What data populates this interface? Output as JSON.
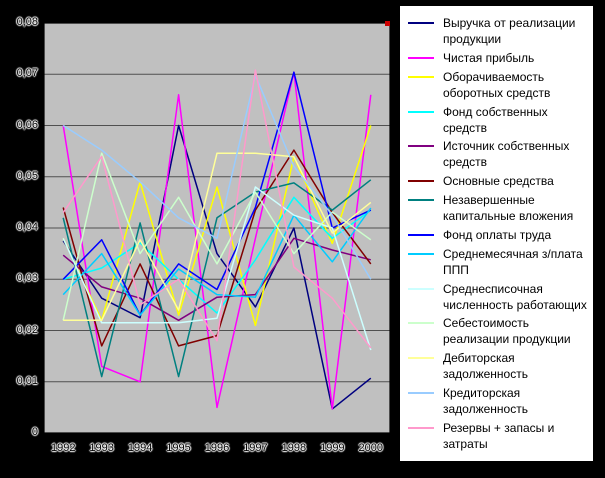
{
  "page": {
    "background": "#000000"
  },
  "chart_data": {
    "type": "line",
    "title": "",
    "xlabel": "",
    "ylabel": "",
    "categories": [
      "1992",
      "1993",
      "1994",
      "1995",
      "1996",
      "1997",
      "1998",
      "1999",
      "2000"
    ],
    "y_tick_labels": [
      "0",
      "0,01",
      "0,02",
      "0,03",
      "0,04",
      "0,05",
      "0,06",
      "0,07",
      "0,08"
    ],
    "ylim": [
      0,
      0.08
    ],
    "grid": "horizontal",
    "legend_position": "right",
    "plot_background": "#C0C0C0",
    "gridline_color": "#505050",
    "series": [
      {
        "name": "Выручка от реализации продукции",
        "color": "#000080",
        "values": [
          0.0375,
          0.0263,
          0.0225,
          0.06,
          0.035,
          0.0246,
          0.04,
          0.0047,
          0.0107
        ]
      },
      {
        "name": "Чистая прибыль",
        "color": "#FF00FF",
        "values": [
          0.06,
          0.013,
          0.01,
          0.066,
          0.005,
          0.038,
          0.0704,
          0.0047,
          0.066
        ]
      },
      {
        "name": "Оборачиваемость оборотных средств",
        "color": "#FFFF00",
        "values": [
          0.038,
          0.022,
          0.049,
          0.023,
          0.048,
          0.021,
          0.0539,
          0.037,
          0.06
        ]
      },
      {
        "name": "Фонд собственных средств",
        "color": "#00FFFF",
        "values": [
          0.03,
          0.0322,
          0.0371,
          0.03,
          0.0234,
          0.0338,
          0.046,
          0.038,
          0.0435
        ]
      },
      {
        "name": "Источник собственных средств",
        "color": "#800080",
        "values": [
          0.0347,
          0.0285,
          0.0263,
          0.022,
          0.0265,
          0.027,
          0.038,
          0.0357,
          0.0338
        ]
      },
      {
        "name": "Основные средства",
        "color": "#800000",
        "values": [
          0.044,
          0.017,
          0.033,
          0.017,
          0.019,
          0.0435,
          0.0552,
          0.043,
          0.033
        ]
      },
      {
        "name": "Незавершенные капитальные вложения",
        "color": "#008080",
        "values": [
          0.042,
          0.011,
          0.041,
          0.011,
          0.042,
          0.047,
          0.0488,
          0.0435,
          0.0494
        ]
      },
      {
        "name": "Фонд оплаты труда",
        "color": "#0000FF",
        "values": [
          0.03,
          0.0377,
          0.023,
          0.033,
          0.028,
          0.044,
          0.0704,
          0.04,
          0.0435
        ]
      },
      {
        "name": "Среднемесячная з/плата ППП",
        "color": "#00CCFF",
        "values": [
          0.027,
          0.035,
          0.023,
          0.032,
          0.027,
          0.0265,
          0.0425,
          0.0334,
          0.0439
        ]
      },
      {
        "name": "Среднесписочная численность работающих",
        "color": "#CCFFFF",
        "values": [
          0.038,
          0.0215,
          0.0215,
          0.0215,
          0.0224,
          0.048,
          0.0425,
          0.04,
          0.0162
        ]
      },
      {
        "name": "Себестоимость реализации продукции",
        "color": "#CCFFCC",
        "values": [
          0.022,
          0.0546,
          0.035,
          0.046,
          0.033,
          0.047,
          0.035,
          0.0431,
          0.0377
        ]
      },
      {
        "name": "Дебиторская задолженность",
        "color": "#FFFF99",
        "values": [
          0.022,
          0.022,
          0.0377,
          0.024,
          0.0546,
          0.0546,
          0.0539,
          0.039,
          0.045
        ]
      },
      {
        "name": "Кредиторская задолженность",
        "color": "#99CCFF",
        "values": [
          0.06,
          0.0552,
          0.049,
          0.042,
          0.038,
          0.0698,
          0.052,
          0.0425,
          0.03
        ]
      },
      {
        "name": "Резервы + запасы и затраты",
        "color": "#FF99CC",
        "values": [
          0.043,
          0.054,
          0.025,
          0.03,
          0.018,
          0.0708,
          0.0324,
          0.0263,
          0.0166
        ]
      }
    ]
  }
}
